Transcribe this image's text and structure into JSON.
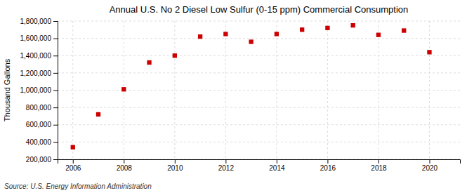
{
  "chart_data": {
    "type": "scatter",
    "title": "Annual U.S. No 2 Diesel Low Sulfur (0-15 ppm) Commercial Consumption",
    "ylabel": "Thousand Gallons",
    "source": "Source: U.S. Energy Information Administration",
    "x": [
      2006,
      2007,
      2008,
      2009,
      2010,
      2011,
      2012,
      2013,
      2014,
      2015,
      2016,
      2017,
      2018,
      2019,
      2020
    ],
    "values": [
      340000,
      720000,
      1010000,
      1320000,
      1400000,
      1620000,
      1650000,
      1560000,
      1650000,
      1700000,
      1720000,
      1750000,
      1640000,
      1690000,
      1440000
    ],
    "color": "#cc0000",
    "marker": "square",
    "xlim": [
      2005.4,
      2021.2
    ],
    "xticks": [
      2006,
      2008,
      2010,
      2012,
      2014,
      2016,
      2018,
      2020
    ],
    "ylim": [
      200000,
      1800000
    ],
    "yticks": [
      {
        "value": 200000,
        "label": "200,000"
      },
      {
        "value": 400000,
        "label": "400,000"
      },
      {
        "value": 600000,
        "label": "600,000"
      },
      {
        "value": 800000,
        "label": "800,000"
      },
      {
        "value": 1000000,
        "label": "1,000,000"
      },
      {
        "value": 1200000,
        "label": "1,200,000"
      },
      {
        "value": 1400000,
        "label": "1,400,000"
      },
      {
        "value": 1600000,
        "label": "1,600,000"
      },
      {
        "value": 1800000,
        "label": "1,800,000"
      }
    ],
    "grid": true
  }
}
